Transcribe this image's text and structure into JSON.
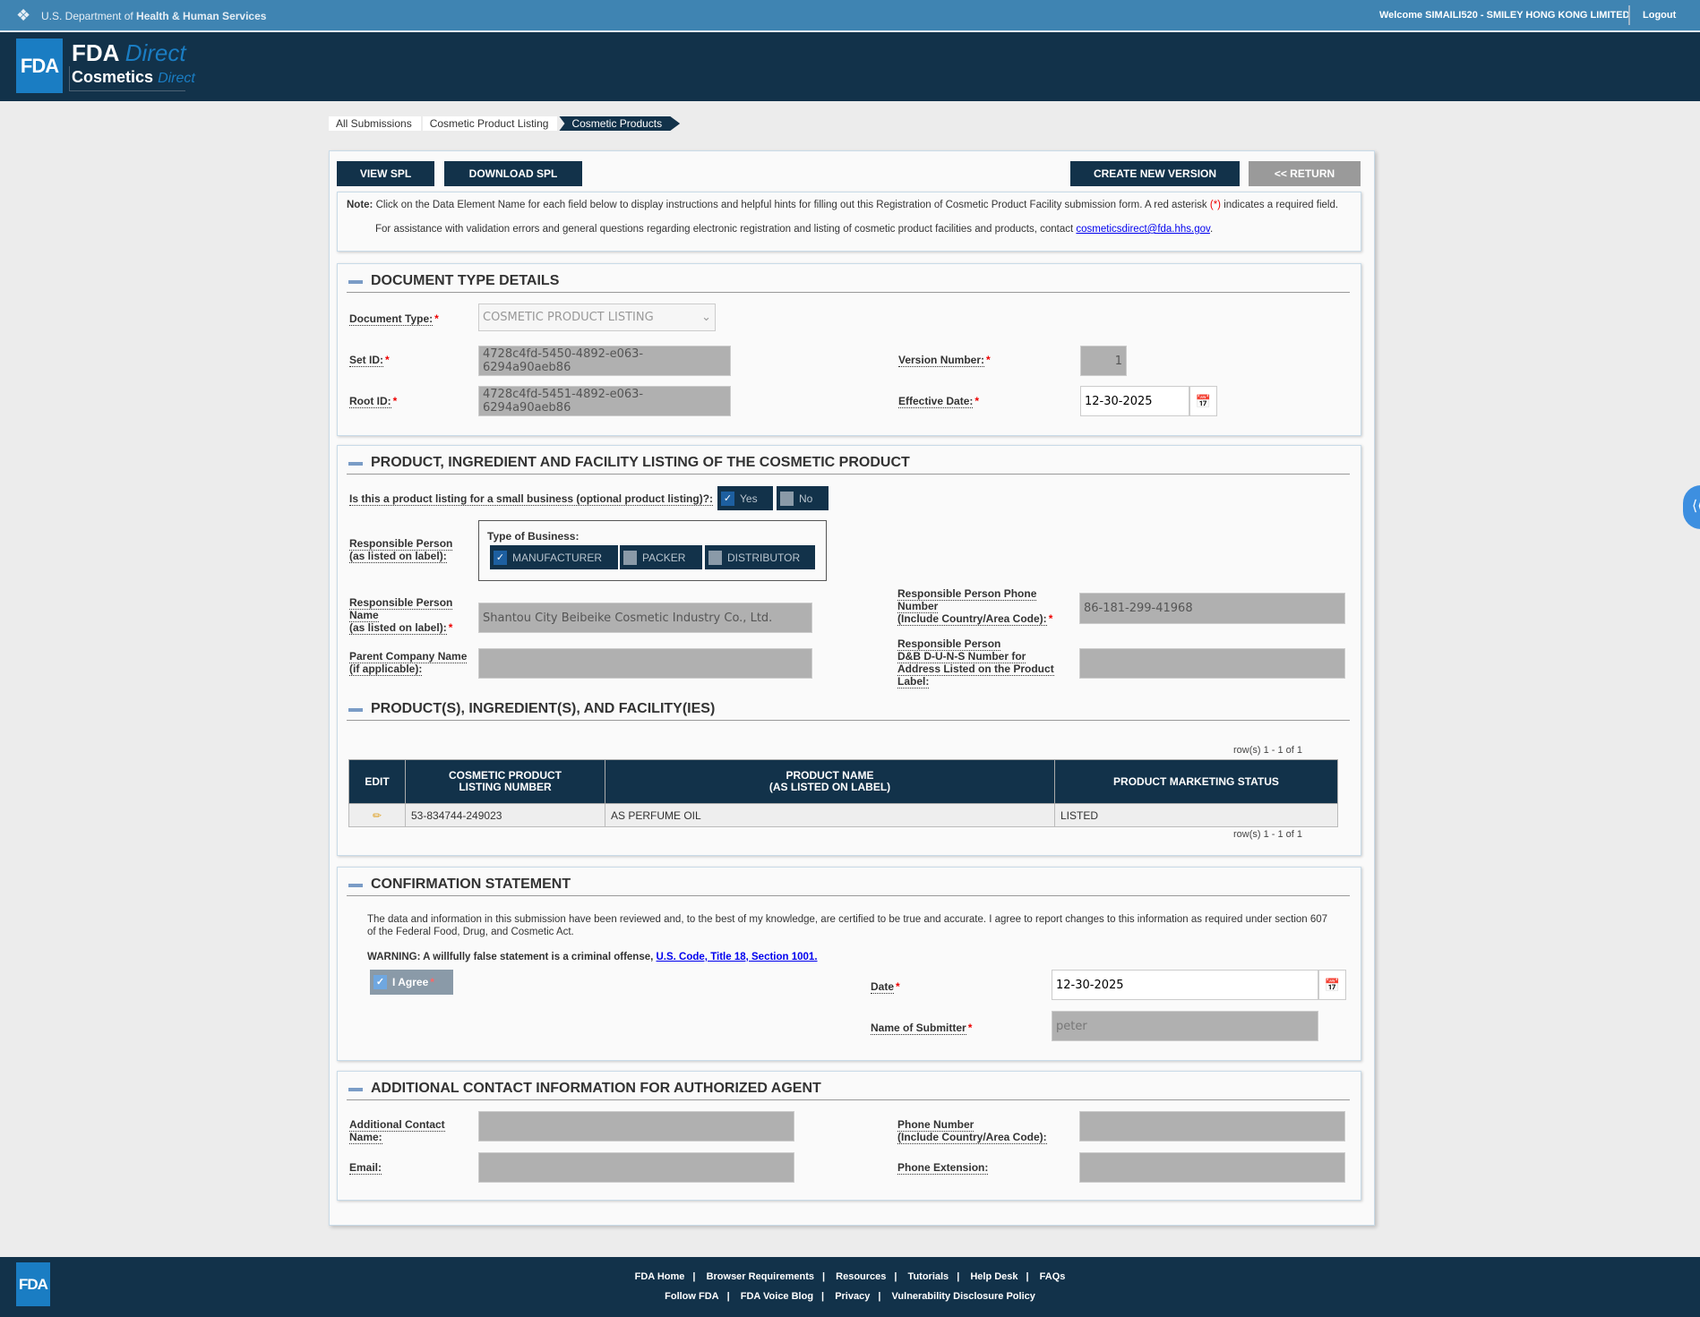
{
  "topbar": {
    "agency_prefix": "U.S. Department of ",
    "agency_bold": "Health & Human Services",
    "welcome": "Welcome SIMAILI520 - SMILEY HONG KONG LIMITED",
    "logout": "Logout"
  },
  "header": {
    "logo_fda": "FDA",
    "title_main": "FDA",
    "title_direct": "Direct",
    "subtitle_main": "Cosmetics",
    "subtitle_direct": "Direct"
  },
  "breadcrumb": [
    "All Submissions",
    "Cosmetic Product Listing",
    "Cosmetic Products"
  ],
  "toolbar": {
    "view_spl": "VIEW SPL",
    "download_spl": "DOWNLOAD SPL",
    "create_new_version": "CREATE NEW VERSION",
    "return": "<< RETURN"
  },
  "note": {
    "label": "Note:",
    "text": " Click on the Data Element Name for each field below to display instructions and helpful hints for filling out this Registration of Cosmetic Product Facility submission form. A red asterisk ",
    "asterisk": "(*)",
    "text2": " indicates a required field.",
    "assist": "For assistance with validation errors and general questions regarding electronic registration and listing of cosmetic product facilities and products, contact ",
    "email": "cosmeticsdirect@fda.hhs.gov",
    "period": "."
  },
  "document_type": {
    "title": "DOCUMENT TYPE DETAILS",
    "document_type_label": "Document Type:",
    "document_type_value": "COSMETIC PRODUCT LISTING",
    "set_id_label": "Set ID:",
    "set_id": "4728c4fd-5450-4892-e063-6294a90aeb86",
    "root_id_label": "Root ID:",
    "root_id": "4728c4fd-5451-4892-e063-6294a90aeb86",
    "version_label": "Version Number:",
    "version": "1",
    "effective_date_label": "Effective Date:",
    "effective_date": "12-30-2025"
  },
  "listing": {
    "title": "PRODUCT, INGREDIENT AND FACILITY LISTING OF THE COSMETIC PRODUCT",
    "small_business_label": "Is this a product listing for a small business (optional product listing)?:",
    "yes": "Yes",
    "no": "No",
    "small_business_selected": "Yes",
    "rp_label_1": "Responsible Person",
    "rp_label_2": "(as listed on label):",
    "type_of_business_label": "Type of Business:",
    "business_types": [
      {
        "label": "MANUFACTURER",
        "checked": true
      },
      {
        "label": "PACKER",
        "checked": false
      },
      {
        "label": "DISTRIBUTOR",
        "checked": false
      }
    ],
    "rp_name_label_1": "Responsible Person",
    "rp_name_label_2": "Name",
    "rp_name_label_3": "(as listed on label):",
    "rp_name": "Shantou City Beibeike Cosmetic Industry Co., Ltd.",
    "rp_phone_label_1": "Responsible Person Phone",
    "rp_phone_label_2": "Number",
    "rp_phone_label_3": "(Include Country/Area Code):",
    "rp_phone": "86-181-299-41968",
    "parent_label_1": "Parent Company Name",
    "parent_label_2": "(if applicable):",
    "parent_value": "",
    "duns_label_1": "Responsible Person",
    "duns_label_2": "D&B D-U-N-S Number for",
    "duns_label_3": "Address Listed on the Product",
    "duns_label_4": "Label:",
    "duns_value": "",
    "products_title": "PRODUCT(S), INGREDIENT(S), AND FACILITY(IES)",
    "rows_info": "row(s) 1 - 1 of 1",
    "columns": [
      "EDIT",
      "COSMETIC PRODUCT\nLISTING NUMBER",
      "PRODUCT NAME\n(AS LISTED ON LABEL)",
      "PRODUCT MARKETING STATUS"
    ],
    "col_1a": "COSMETIC PRODUCT",
    "col_1b": "LISTING NUMBER",
    "col_2a": "PRODUCT NAME",
    "col_2b": "(AS LISTED ON LABEL)",
    "rows": [
      {
        "listing_number": "53-834744-249023",
        "product_name": "AS PERFUME OIL",
        "status": "LISTED"
      }
    ]
  },
  "confirmation": {
    "title": "CONFIRMATION STATEMENT",
    "text": "The data and information in this submission have been reviewed and, to the best of my knowledge, are certified to be true and accurate. I agree to report changes to this information as required under section 607 of the Federal Food, Drug, and Cosmetic Act.",
    "warning": "WARNING: A willfully false statement is a criminal offense, ",
    "warning_link": "U.S. Code, Title 18, Section 1001.",
    "agree_label": "I Agree",
    "agree_checked": true,
    "date_label": "Date",
    "date": "12-30-2025",
    "submitter_label": "Name of Submitter",
    "submitter": "peter"
  },
  "agent": {
    "title": "ADDITIONAL CONTACT INFORMATION FOR AUTHORIZED AGENT",
    "contact_label_1": "Additional Contact",
    "contact_label_2": "Name:",
    "contact_value": "",
    "email_label": "Email:",
    "email_value": "",
    "phone_label_1": "Phone Number",
    "phone_label_2": "(Include Country/Area Code):",
    "phone_value": "",
    "ext_label": "Phone Extension:",
    "ext_value": ""
  },
  "footer": {
    "logo": "FDA",
    "row1": [
      "FDA Home",
      "Browser Requirements",
      "Resources",
      "Tutorials",
      "Help Desk",
      "FAQs"
    ],
    "row2": [
      "Follow FDA",
      "FDA Voice Blog",
      "Privacy",
      "Vulnerability Disclosure Policy"
    ]
  },
  "colors": {
    "topbar": "#3f84b2",
    "navy": "#12324a",
    "fda_blue": "#1a7dc3",
    "required": "#ee0000",
    "disabled_input": "#b0b0b0"
  }
}
